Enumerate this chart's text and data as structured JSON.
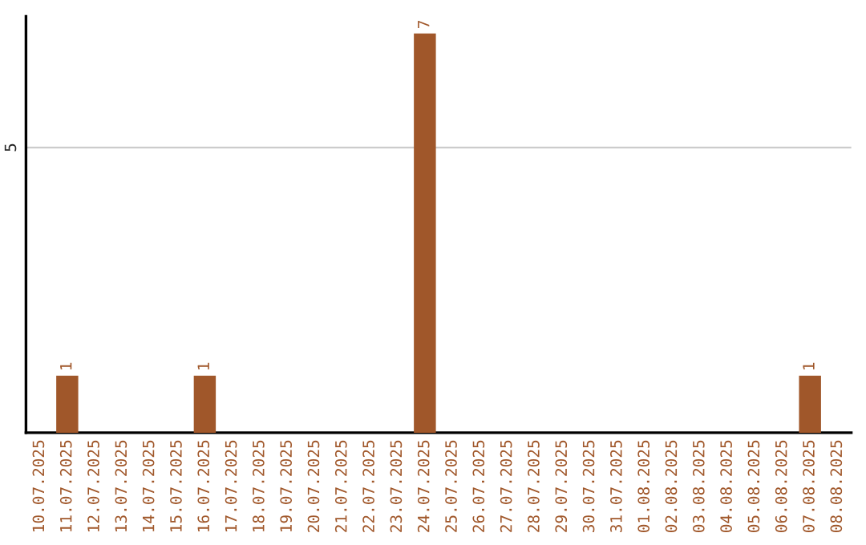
{
  "chart_data": {
    "type": "bar",
    "categories": [
      "10.07.2025",
      "11.07.2025",
      "12.07.2025",
      "13.07.2025",
      "14.07.2025",
      "15.07.2025",
      "16.07.2025",
      "17.07.2025",
      "18.07.2025",
      "19.07.2025",
      "20.07.2025",
      "21.07.2025",
      "22.07.2025",
      "23.07.2025",
      "24.07.2025",
      "25.07.2025",
      "26.07.2025",
      "27.07.2025",
      "28.07.2025",
      "29.07.2025",
      "30.07.2025",
      "31.07.2025",
      "01.08.2025",
      "02.08.2025",
      "03.08.2025",
      "04.08.2025",
      "05.08.2025",
      "06.08.2025",
      "07.08.2025",
      "08.08.2025"
    ],
    "values": [
      0,
      1,
      0,
      0,
      0,
      0,
      1,
      0,
      0,
      0,
      0,
      0,
      0,
      0,
      7,
      0,
      0,
      0,
      0,
      0,
      0,
      0,
      0,
      0,
      0,
      0,
      0,
      0,
      1,
      0
    ],
    "value_labels": [
      null,
      "1",
      null,
      null,
      null,
      null,
      "1",
      null,
      null,
      null,
      null,
      null,
      null,
      null,
      "7",
      null,
      null,
      null,
      null,
      null,
      null,
      null,
      null,
      null,
      null,
      null,
      null,
      null,
      "1",
      null
    ],
    "color": "#a0572a",
    "ylim": [
      0,
      7.3
    ],
    "yticks": [
      5
    ],
    "grid": "y"
  }
}
